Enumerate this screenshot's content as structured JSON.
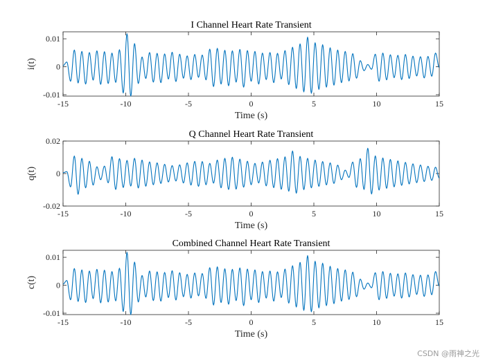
{
  "chart_data": [
    {
      "type": "line",
      "title": "I Channel Heart Rate Transient",
      "xlabel": "Time (s)",
      "ylabel": "i(t)",
      "xlim": [
        -15,
        15
      ],
      "ylim": [
        -0.0105,
        0.0125
      ],
      "xticks": [
        -15,
        -10,
        -5,
        0,
        5,
        10,
        15
      ],
      "xtick_labels": [
        "-15",
        "-10",
        "-5",
        "0",
        "5",
        "10",
        "15"
      ],
      "yticks": [
        -0.01,
        0,
        0.01
      ],
      "ytick_labels": [
        "-0.01",
        "0",
        "0.01"
      ],
      "color": "#0072BD",
      "grid": false,
      "series": [
        {
          "name": "i(t)",
          "x": [
            -15,
            -14.7,
            -14.4,
            -14.1,
            -13.8,
            -13.5,
            -13.2,
            -12.9,
            -12.6,
            -12.3,
            -12,
            -11.7,
            -11.4,
            -11.1,
            -10.8,
            -10.5,
            -10.2,
            -9.9,
            -9.6,
            -9.3,
            -9,
            -8.7,
            -8.4,
            -8.1,
            -7.8,
            -7.5,
            -7.2,
            -6.9,
            -6.6,
            -6.3,
            -6,
            -5.7,
            -5.4,
            -5.1,
            -4.8,
            -4.5,
            -4.2,
            -3.9,
            -3.6,
            -3.3,
            -3,
            -2.7,
            -2.4,
            -2.1,
            -1.8,
            -1.5,
            -1.2,
            -0.9,
            -0.6,
            -0.3,
            0,
            0.3,
            0.6,
            0.9,
            1.2,
            1.5,
            1.8,
            2.1,
            2.4,
            2.7,
            3,
            3.3,
            3.6,
            3.9,
            4.2,
            4.5,
            4.8,
            5.1,
            5.4,
            5.7,
            6,
            6.3,
            6.6,
            6.9,
            7.2,
            7.5,
            7.8,
            8.1,
            8.4,
            8.7,
            9,
            9.3,
            9.6,
            9.9,
            10.2,
            10.5,
            10.8,
            11.1,
            11.4,
            11.7,
            12,
            12.3,
            12.6,
            12.9,
            13.2,
            13.5,
            13.8,
            14.1,
            14.4,
            14.7,
            15
          ],
          "y": [
            0.0004,
            0.0017,
            -0.0052,
            0.006,
            -0.0058,
            0.0055,
            -0.0062,
            0.0051,
            -0.0048,
            0.0057,
            -0.0063,
            0.0054,
            -0.006,
            0.0049,
            -0.0056,
            0.0061,
            -0.0094,
            0.0118,
            -0.0105,
            0.0083,
            -0.006,
            0.0035,
            -0.0042,
            0.0051,
            -0.0055,
            0.0048,
            -0.0057,
            0.0046,
            -0.0044,
            0.0052,
            -0.0053,
            0.0045,
            -0.0041,
            0.0039,
            -0.0046,
            0.0044,
            -0.0038,
            0.0042,
            -0.0047,
            0.0063,
            -0.0071,
            0.0066,
            -0.0062,
            0.0059,
            -0.0068,
            0.0057,
            -0.0055,
            0.0062,
            -0.0073,
            0.0058,
            -0.0052,
            0.0055,
            -0.0062,
            0.0049,
            -0.0046,
            0.0051,
            -0.0057,
            0.0048,
            -0.0044,
            0.0058,
            -0.0064,
            0.007,
            -0.0078,
            0.0082,
            -0.009,
            0.0106,
            -0.0095,
            0.0086,
            -0.0081,
            0.0079,
            -0.0073,
            0.0068,
            -0.0066,
            0.006,
            -0.0057,
            0.0055,
            -0.0051,
            0.0047,
            -0.0041,
            0.0022,
            -0.0014,
            0.0008,
            -0.0009,
            0.0045,
            -0.0052,
            0.0049,
            -0.0047,
            0.0043,
            -0.0039,
            0.0041,
            -0.0046,
            0.0044,
            -0.0042,
            0.0038,
            -0.0033,
            0.0036,
            -0.004,
            0.0037,
            -0.0034,
            0.0049,
            -0.0003
          ]
        }
      ]
    },
    {
      "type": "line",
      "title": "Q Channel Heart Rate Transient",
      "xlabel": "Time (s)",
      "ylabel": "q(t)",
      "xlim": [
        -15,
        15
      ],
      "ylim": [
        -0.02,
        0.02
      ],
      "xticks": [
        -15,
        -10,
        -5,
        0,
        5,
        10,
        15
      ],
      "xtick_labels": [
        "-15",
        "-10",
        "-5",
        "0",
        "5",
        "10",
        "15"
      ],
      "yticks": [
        -0.02,
        0,
        0.02
      ],
      "ytick_labels": [
        "-0.02",
        "0",
        "0.02"
      ],
      "color": "#0072BD",
      "grid": false,
      "series": [
        {
          "name": "q(t)",
          "x": [
            -15,
            -14.7,
            -14.4,
            -14.1,
            -13.8,
            -13.5,
            -13.2,
            -12.9,
            -12.6,
            -12.3,
            -12,
            -11.7,
            -11.4,
            -11.1,
            -10.8,
            -10.5,
            -10.2,
            -9.9,
            -9.6,
            -9.3,
            -9,
            -8.7,
            -8.4,
            -8.1,
            -7.8,
            -7.5,
            -7.2,
            -6.9,
            -6.6,
            -6.3,
            -6,
            -5.7,
            -5.4,
            -5.1,
            -4.8,
            -4.5,
            -4.2,
            -3.9,
            -3.6,
            -3.3,
            -3,
            -2.7,
            -2.4,
            -2.1,
            -1.8,
            -1.5,
            -1.2,
            -0.9,
            -0.6,
            -0.3,
            0,
            0.3,
            0.6,
            0.9,
            1.2,
            1.5,
            1.8,
            2.1,
            2.4,
            2.7,
            3,
            3.3,
            3.6,
            3.9,
            4.2,
            4.5,
            4.8,
            5.1,
            5.4,
            5.7,
            6,
            6.3,
            6.6,
            6.9,
            7.2,
            7.5,
            7.8,
            8.1,
            8.4,
            8.7,
            9,
            9.3,
            9.6,
            9.9,
            10.2,
            10.5,
            10.8,
            11.1,
            11.4,
            11.7,
            12,
            12.3,
            12.6,
            12.9,
            13.2,
            13.5,
            13.8,
            14.1,
            14.4,
            14.7,
            15
          ],
          "y": [
            0.0005,
            0.0012,
            -0.0082,
            0.0108,
            -0.0128,
            0.0094,
            -0.0088,
            0.0076,
            -0.0071,
            0.0042,
            -0.0038,
            0.0046,
            -0.0057,
            0.0104,
            -0.0098,
            0.0092,
            -0.0086,
            0.0081,
            -0.0077,
            0.0094,
            -0.0089,
            0.0083,
            -0.0078,
            0.0072,
            -0.0069,
            0.0066,
            -0.0061,
            0.0057,
            -0.0052,
            0.0049,
            -0.0046,
            0.0054,
            -0.0058,
            0.0066,
            -0.0071,
            0.0075,
            -0.0079,
            0.0074,
            -0.0069,
            0.0063,
            -0.0059,
            0.0083,
            -0.0088,
            0.0094,
            -0.0098,
            0.0101,
            -0.0096,
            0.0089,
            -0.0084,
            0.0076,
            -0.0069,
            0.0063,
            -0.0058,
            0.0071,
            -0.0076,
            0.0082,
            -0.0087,
            0.0092,
            -0.0097,
            0.0103,
            -0.0109,
            0.0139,
            -0.0121,
            0.0106,
            -0.0099,
            0.0094,
            -0.0088,
            0.0083,
            -0.0079,
            0.0074,
            -0.007,
            0.0066,
            -0.0061,
            0.0052,
            -0.0038,
            0.0021,
            -0.0024,
            0.0071,
            -0.0085,
            0.0092,
            -0.0098,
            0.0156,
            -0.0126,
            0.0109,
            -0.0102,
            0.0096,
            -0.0091,
            0.0087,
            -0.0082,
            0.0078,
            -0.0073,
            0.0069,
            -0.0064,
            0.006,
            -0.0056,
            0.0053,
            -0.0049,
            0.0045,
            -0.0042,
            0.0039,
            -0.0028
          ]
        }
      ]
    },
    {
      "type": "line",
      "title": "Combined Channel Heart Rate Transient",
      "xlabel": "Time (s)",
      "ylabel": "c(t)",
      "xlim": [
        -15,
        15
      ],
      "ylim": [
        -0.0105,
        0.0125
      ],
      "xticks": [
        -15,
        -10,
        -5,
        0,
        5,
        10,
        15
      ],
      "xtick_labels": [
        "-15",
        "-10",
        "-5",
        "0",
        "5",
        "10",
        "15"
      ],
      "yticks": [
        -0.01,
        0,
        0.01
      ],
      "ytick_labels": [
        "-0.01",
        "0",
        "0.01"
      ],
      "color": "#0072BD",
      "grid": false,
      "series": [
        {
          "name": "c(t)",
          "x": [
            -15,
            -14.7,
            -14.4,
            -14.1,
            -13.8,
            -13.5,
            -13.2,
            -12.9,
            -12.6,
            -12.3,
            -12,
            -11.7,
            -11.4,
            -11.1,
            -10.8,
            -10.5,
            -10.2,
            -9.9,
            -9.6,
            -9.3,
            -9,
            -8.7,
            -8.4,
            -8.1,
            -7.8,
            -7.5,
            -7.2,
            -6.9,
            -6.6,
            -6.3,
            -6,
            -5.7,
            -5.4,
            -5.1,
            -4.8,
            -4.5,
            -4.2,
            -3.9,
            -3.6,
            -3.3,
            -3,
            -2.7,
            -2.4,
            -2.1,
            -1.8,
            -1.5,
            -1.2,
            -0.9,
            -0.6,
            -0.3,
            0,
            0.3,
            0.6,
            0.9,
            1.2,
            1.5,
            1.8,
            2.1,
            2.4,
            2.7,
            3,
            3.3,
            3.6,
            3.9,
            4.2,
            4.5,
            4.8,
            5.1,
            5.4,
            5.7,
            6,
            6.3,
            6.6,
            6.9,
            7.2,
            7.5,
            7.8,
            8.1,
            8.4,
            8.7,
            9,
            9.3,
            9.6,
            9.9,
            10.2,
            10.5,
            10.8,
            11.1,
            11.4,
            11.7,
            12,
            12.3,
            12.6,
            12.9,
            13.2,
            13.5,
            13.8,
            14.1,
            14.4,
            14.7,
            15
          ],
          "y": [
            0.0004,
            0.0017,
            -0.0052,
            0.006,
            -0.0058,
            0.0055,
            -0.0062,
            0.0051,
            -0.0048,
            0.0057,
            -0.0063,
            0.0054,
            -0.006,
            0.0049,
            -0.0056,
            0.0061,
            -0.0094,
            0.0118,
            -0.0105,
            0.0083,
            -0.006,
            0.0035,
            -0.0042,
            0.0051,
            -0.0055,
            0.0048,
            -0.0057,
            0.0046,
            -0.0044,
            0.0052,
            -0.0053,
            0.0045,
            -0.0041,
            0.0039,
            -0.0046,
            0.0044,
            -0.0038,
            0.0042,
            -0.0047,
            0.0063,
            -0.0071,
            0.0066,
            -0.0062,
            0.0059,
            -0.0068,
            0.0057,
            -0.0055,
            0.0062,
            -0.0073,
            0.0058,
            -0.0052,
            0.0055,
            -0.0062,
            0.0049,
            -0.0046,
            0.0051,
            -0.0057,
            0.0048,
            -0.0044,
            0.0058,
            -0.0064,
            0.007,
            -0.0078,
            0.0082,
            -0.009,
            0.0106,
            -0.0095,
            0.0086,
            -0.0081,
            0.0079,
            -0.0073,
            0.0068,
            -0.0066,
            0.006,
            -0.0057,
            0.0055,
            -0.0051,
            0.0047,
            -0.0041,
            0.0022,
            -0.0014,
            0.0008,
            -0.0009,
            0.0045,
            -0.0052,
            0.0049,
            -0.0047,
            0.0043,
            -0.0039,
            0.0041,
            -0.0046,
            0.0044,
            -0.0042,
            0.0038,
            -0.0033,
            0.0036,
            -0.004,
            0.0037,
            -0.0034,
            0.0049,
            -0.0003
          ]
        }
      ]
    }
  ],
  "watermark": "CSDN @雨神之光"
}
